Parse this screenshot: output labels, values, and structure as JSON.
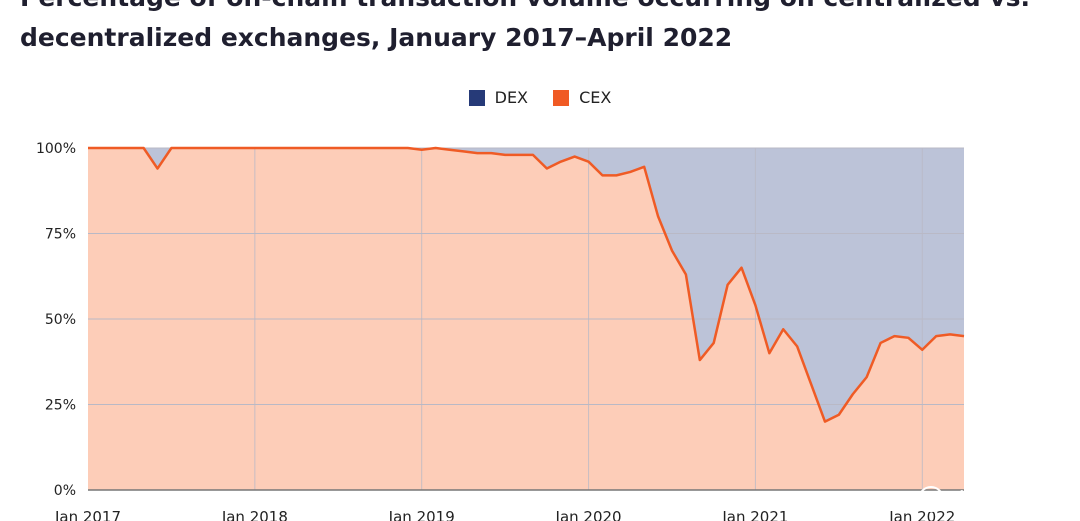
{
  "title": "Percentage of on-chain transaction volume occurring on centralized vs. decentralized exchanges, January 2017–April 2022",
  "watermark": "老雅痞",
  "colors": {
    "dex_fill": "#bcc3d8",
    "cex_fill": "#fdcdb8",
    "cex_line": "#ef5b25",
    "dex_swatch": "#263a78",
    "cex_swatch": "#f05a24",
    "grid": "#b9b9c6",
    "baseline": "#777777"
  },
  "chart_data": {
    "type": "area",
    "stacked": true,
    "percent": true,
    "x_start": "2017-01",
    "x_end": "2022-04",
    "x_ticks": [
      "Jan 2017",
      "Jan 2018",
      "Jan 2019",
      "Jan 2020",
      "Jan 2021",
      "Jan 2022"
    ],
    "y_ticks": [
      "0%",
      "25%",
      "50%",
      "75%",
      "100%"
    ],
    "ylim": [
      0,
      100
    ],
    "legend": [
      "DEX",
      "CEX"
    ],
    "legend_position": "top-center",
    "grid": true,
    "series": [
      {
        "name": "CEX",
        "x": [
          "2017-01",
          "2017-02",
          "2017-03",
          "2017-04",
          "2017-05",
          "2017-06",
          "2017-07",
          "2017-08",
          "2017-09",
          "2017-10",
          "2017-11",
          "2017-12",
          "2018-01",
          "2018-02",
          "2018-03",
          "2018-04",
          "2018-05",
          "2018-06",
          "2018-07",
          "2018-08",
          "2018-09",
          "2018-10",
          "2018-11",
          "2018-12",
          "2019-01",
          "2019-02",
          "2019-03",
          "2019-04",
          "2019-05",
          "2019-06",
          "2019-07",
          "2019-08",
          "2019-09",
          "2019-10",
          "2019-11",
          "2019-12",
          "2020-01",
          "2020-02",
          "2020-03",
          "2020-04",
          "2020-05",
          "2020-06",
          "2020-07",
          "2020-08",
          "2020-09",
          "2020-10",
          "2020-11",
          "2020-12",
          "2021-01",
          "2021-02",
          "2021-03",
          "2021-04",
          "2021-05",
          "2021-06",
          "2021-07",
          "2021-08",
          "2021-09",
          "2021-10",
          "2021-11",
          "2021-12",
          "2022-01",
          "2022-02",
          "2022-03",
          "2022-04"
        ],
        "values": [
          100,
          100,
          100,
          100,
          100,
          94,
          100,
          100,
          100,
          100,
          100,
          100,
          100,
          100,
          100,
          100,
          100,
          100,
          100,
          100,
          100,
          100,
          100,
          100,
          99.5,
          100,
          99.5,
          99,
          98.5,
          98.5,
          98,
          98,
          98,
          94,
          96,
          97.5,
          96,
          92,
          92,
          93,
          94.5,
          80,
          70,
          63,
          38,
          43,
          60,
          65,
          54,
          40,
          47,
          42,
          31,
          20,
          22,
          28,
          33,
          43,
          45,
          44.5,
          41,
          45,
          45.5,
          45
        ]
      },
      {
        "name": "DEX",
        "x": [
          "2017-01",
          "2017-02",
          "2017-03",
          "2017-04",
          "2017-05",
          "2017-06",
          "2017-07",
          "2017-08",
          "2017-09",
          "2017-10",
          "2017-11",
          "2017-12",
          "2018-01",
          "2018-02",
          "2018-03",
          "2018-04",
          "2018-05",
          "2018-06",
          "2018-07",
          "2018-08",
          "2018-09",
          "2018-10",
          "2018-11",
          "2018-12",
          "2019-01",
          "2019-02",
          "2019-03",
          "2019-04",
          "2019-05",
          "2019-06",
          "2019-07",
          "2019-08",
          "2019-09",
          "2019-10",
          "2019-11",
          "2019-12",
          "2020-01",
          "2020-02",
          "2020-03",
          "2020-04",
          "2020-05",
          "2020-06",
          "2020-07",
          "2020-08",
          "2020-09",
          "2020-10",
          "2020-11",
          "2020-12",
          "2021-01",
          "2021-02",
          "2021-03",
          "2021-04",
          "2021-05",
          "2021-06",
          "2021-07",
          "2021-08",
          "2021-09",
          "2021-10",
          "2021-11",
          "2021-12",
          "2022-01",
          "2022-02",
          "2022-03",
          "2022-04"
        ],
        "values": [
          0,
          0,
          0,
          0,
          0,
          6,
          0,
          0,
          0,
          0,
          0,
          0,
          0,
          0,
          0,
          0,
          0,
          0,
          0,
          0,
          0,
          0,
          0,
          0,
          0.5,
          0,
          0.5,
          1,
          1.5,
          1.5,
          2,
          2,
          2,
          6,
          4,
          2.5,
          4,
          8,
          8,
          7,
          5.5,
          20,
          30,
          37,
          62,
          57,
          40,
          35,
          46,
          60,
          53,
          58,
          69,
          80,
          78,
          72,
          67,
          57,
          55,
          55.5,
          59,
          55,
          54.5,
          55
        ]
      }
    ]
  }
}
